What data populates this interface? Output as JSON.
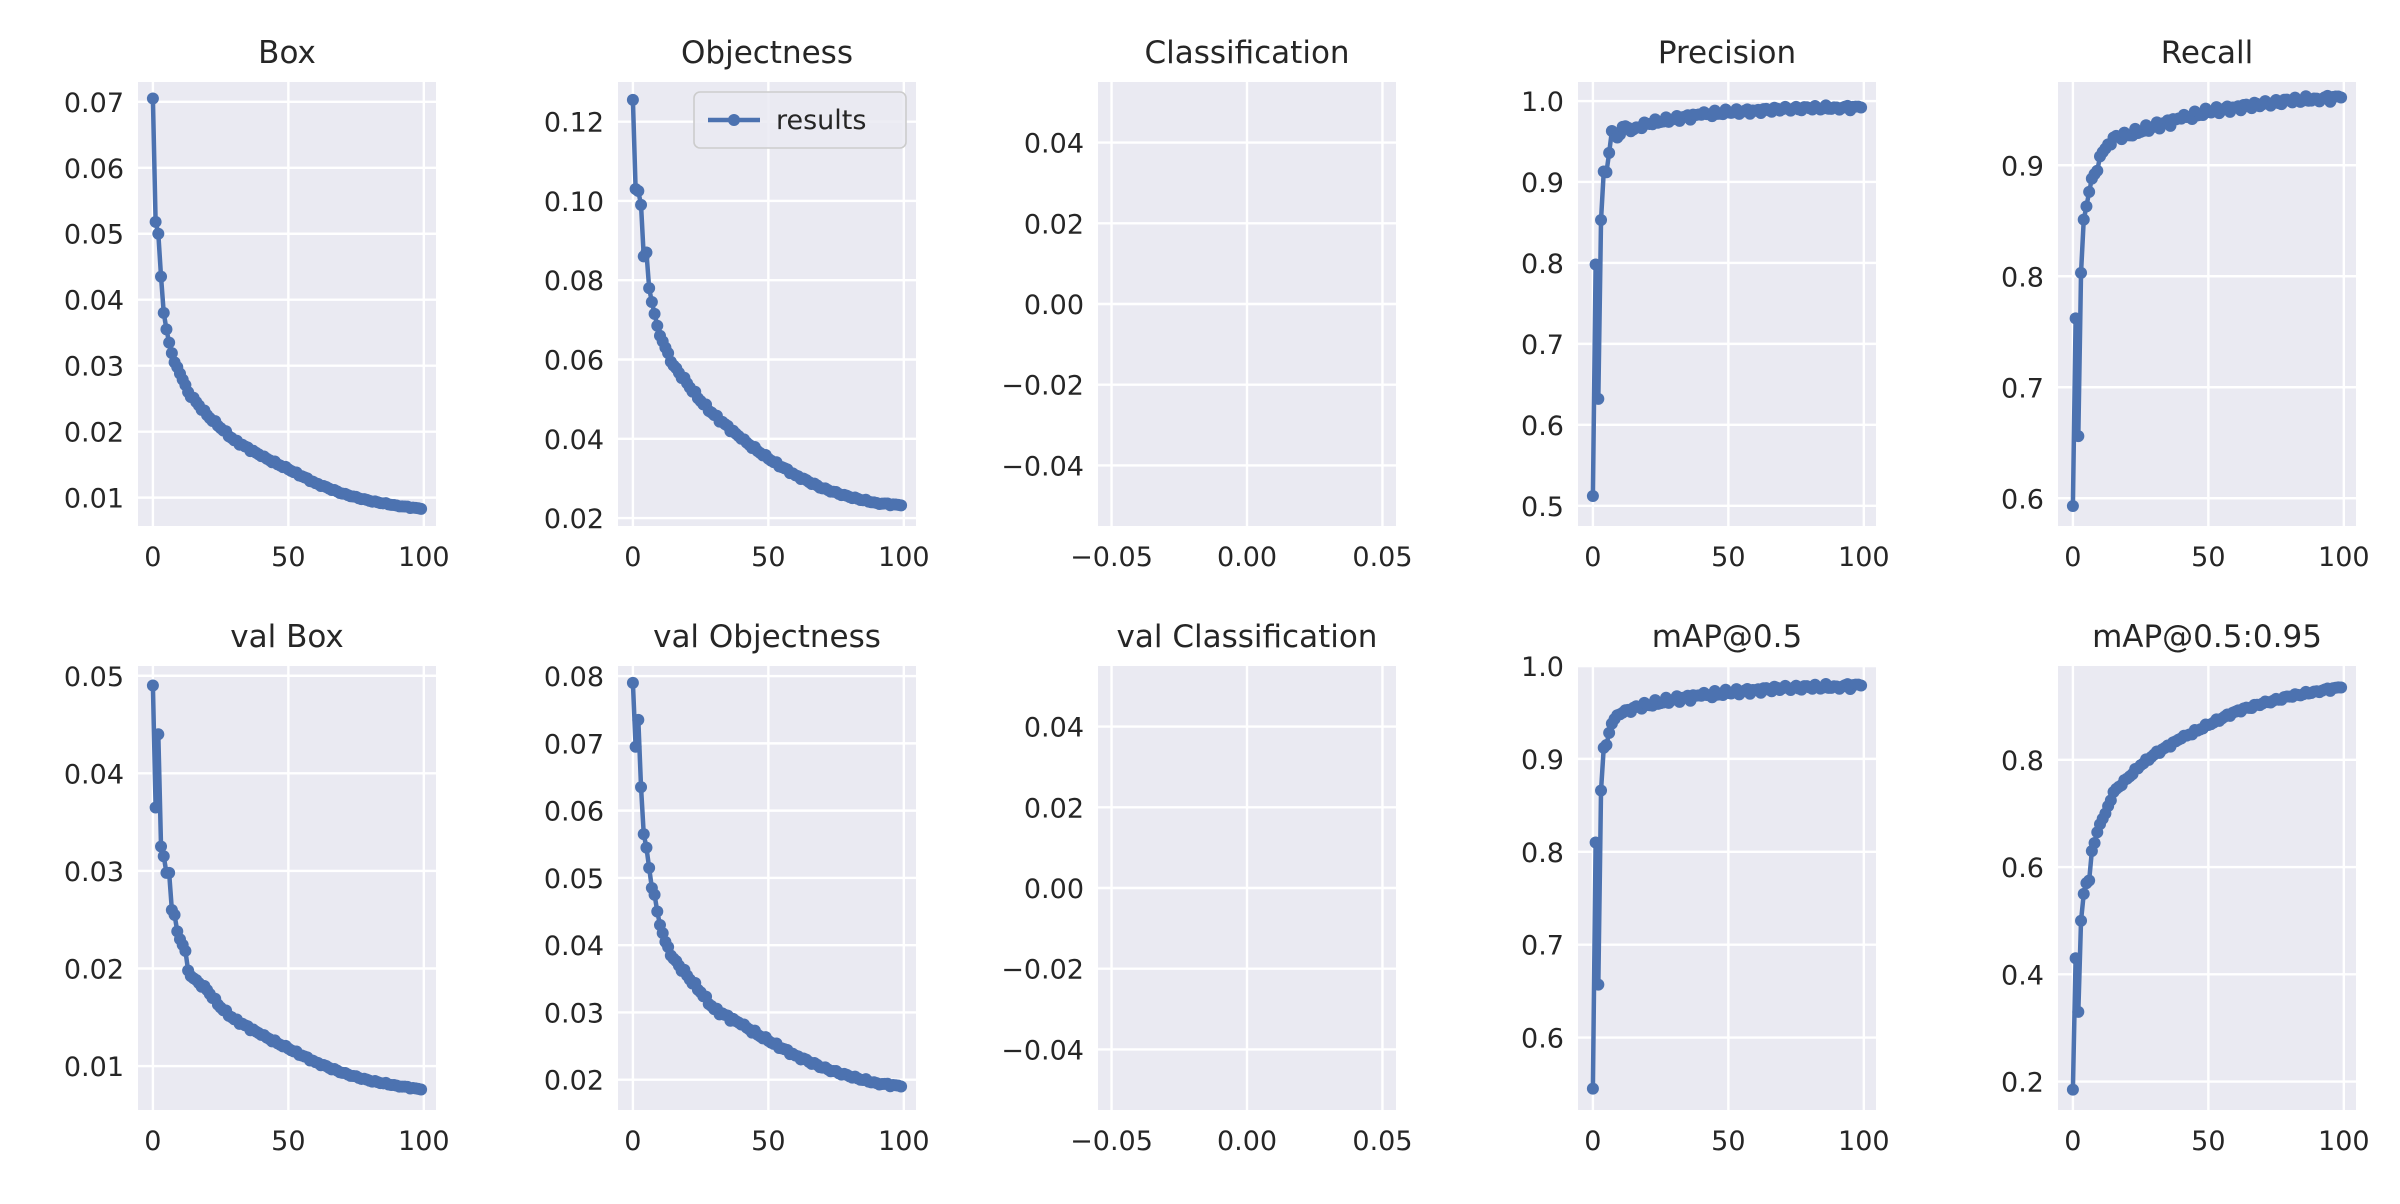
{
  "colors": {
    "plot_bg": "#EAEAF2",
    "grid": "#FFFFFF",
    "series": "#4C72B0",
    "text": "#262626"
  },
  "legend": {
    "label": "results",
    "subplot_index": 1,
    "placement": "upper right"
  },
  "chart_data": [
    {
      "type": "line",
      "title": "Box",
      "xlabel": "",
      "ylabel": "",
      "xlim": [
        -5.5,
        104.5
      ],
      "ylim": [
        0.0057,
        0.073
      ],
      "xticks": [
        0,
        50,
        100
      ],
      "xtick_labels": [
        "0",
        "50",
        "100"
      ],
      "yticks": [
        0.01,
        0.02,
        0.03,
        0.04,
        0.05,
        0.06,
        0.07
      ],
      "ytick_labels": [
        "0.01",
        "0.02",
        "0.03",
        "0.04",
        "0.05",
        "0.06",
        "0.07"
      ],
      "series": [
        {
          "curve": "decay",
          "x_start": 0,
          "x_end": 99,
          "anchors": [
            [
              0,
              0.0705
            ],
            [
              1,
              0.0518
            ],
            [
              2,
              0.05
            ],
            [
              3,
              0.0435
            ],
            [
              4,
              0.038
            ],
            [
              5,
              0.0355
            ],
            [
              6,
              0.0335
            ],
            [
              8,
              0.0305
            ],
            [
              10,
              0.0288
            ],
            [
              13,
              0.026
            ],
            [
              16,
              0.0245
            ],
            [
              20,
              0.0225
            ],
            [
              30,
              0.0187
            ],
            [
              40,
              0.0163
            ],
            [
              50,
              0.0143
            ],
            [
              60,
              0.0122
            ],
            [
              70,
              0.0106
            ],
            [
              80,
              0.0095
            ],
            [
              90,
              0.0088
            ],
            [
              99,
              0.0083
            ]
          ]
        }
      ]
    },
    {
      "type": "line",
      "title": "Objectness",
      "xlabel": "",
      "ylabel": "",
      "xlim": [
        -5.5,
        104.5
      ],
      "ylim": [
        0.018,
        0.13
      ],
      "xticks": [
        0,
        50,
        100
      ],
      "xtick_labels": [
        "0",
        "50",
        "100"
      ],
      "yticks": [
        0.02,
        0.04,
        0.06,
        0.08,
        0.1,
        0.12
      ],
      "ytick_labels": [
        "0.02",
        "0.04",
        "0.06",
        "0.08",
        "0.10",
        "0.12"
      ],
      "series": [
        {
          "curve": "decay",
          "x_start": 0,
          "x_end": 99,
          "anchors": [
            [
              0,
              0.1255
            ],
            [
              1,
              0.103
            ],
            [
              2,
              0.1025
            ],
            [
              3,
              0.099
            ],
            [
              4,
              0.086
            ],
            [
              5,
              0.087
            ],
            [
              6,
              0.078
            ],
            [
              7,
              0.0745
            ],
            [
              8,
              0.0715
            ],
            [
              9,
              0.0685
            ],
            [
              10,
              0.066
            ],
            [
              12,
              0.063
            ],
            [
              15,
              0.0585
            ],
            [
              20,
              0.054
            ],
            [
              25,
              0.0495
            ],
            [
              30,
              0.046
            ],
            [
              40,
              0.04
            ],
            [
              50,
              0.035
            ],
            [
              60,
              0.0308
            ],
            [
              70,
              0.0275
            ],
            [
              80,
              0.0253
            ],
            [
              90,
              0.0238
            ],
            [
              99,
              0.0232
            ]
          ]
        }
      ]
    },
    {
      "type": "line",
      "title": "Classification",
      "xlabel": "",
      "ylabel": "",
      "xlim": [
        -0.055,
        0.055
      ],
      "ylim": [
        -0.055,
        0.055
      ],
      "xticks": [
        -0.05,
        0.0,
        0.05
      ],
      "xtick_labels": [
        "−0.05",
        "0.00",
        "0.05"
      ],
      "yticks": [
        -0.04,
        -0.02,
        0.0,
        0.02,
        0.04
      ],
      "ytick_labels": [
        "−0.04",
        "−0.02",
        "0.00",
        "0.02",
        "0.04"
      ],
      "series": []
    },
    {
      "type": "line",
      "title": "Precision",
      "xlabel": "",
      "ylabel": "",
      "xlim": [
        -5.5,
        104.5
      ],
      "ylim": [
        0.475,
        1.0235
      ],
      "xticks": [
        0,
        50,
        100
      ],
      "xtick_labels": [
        "0",
        "50",
        "100"
      ],
      "yticks": [
        0.5,
        0.6,
        0.7,
        0.8,
        0.9,
        1.0
      ],
      "ytick_labels": [
        "0.5",
        "0.6",
        "0.7",
        "0.8",
        "0.9",
        "1.0"
      ],
      "series": [
        {
          "curve": "rise",
          "x_start": 0,
          "x_end": 99,
          "anchors": [
            [
              0,
              0.512
            ],
            [
              1,
              0.798
            ],
            [
              2,
              0.632
            ],
            [
              3,
              0.853
            ],
            [
              4,
              0.913
            ],
            [
              5,
              0.912
            ],
            [
              6,
              0.936
            ],
            [
              7,
              0.963
            ],
            [
              9,
              0.955
            ],
            [
              11,
              0.968
            ],
            [
              15,
              0.965
            ],
            [
              20,
              0.972
            ],
            [
              30,
              0.978
            ],
            [
              40,
              0.983
            ],
            [
              50,
              0.986
            ],
            [
              60,
              0.988
            ],
            [
              70,
              0.99
            ],
            [
              80,
              0.991
            ],
            [
              90,
              0.992
            ],
            [
              99,
              0.992
            ]
          ]
        }
      ]
    },
    {
      "type": "line",
      "title": "Recall",
      "xlabel": "",
      "ylabel": "",
      "xlim": [
        -5.5,
        104.5
      ],
      "ylim": [
        0.575,
        0.975
      ],
      "xticks": [
        0,
        50,
        100
      ],
      "xtick_labels": [
        "0",
        "50",
        "100"
      ],
      "yticks": [
        0.6,
        0.7,
        0.8,
        0.9
      ],
      "ytick_labels": [
        "0.6",
        "0.7",
        "0.8",
        "0.9"
      ],
      "series": [
        {
          "curve": "rise",
          "x_start": 0,
          "x_end": 99,
          "anchors": [
            [
              0,
              0.593
            ],
            [
              1,
              0.762
            ],
            [
              2,
              0.656
            ],
            [
              3,
              0.803
            ],
            [
              4,
              0.851
            ],
            [
              5,
              0.863
            ],
            [
              6,
              0.876
            ],
            [
              7,
              0.888
            ],
            [
              8,
              0.892
            ],
            [
              9,
              0.895
            ],
            [
              10,
              0.908
            ],
            [
              12,
              0.915
            ],
            [
              15,
              0.925
            ],
            [
              20,
              0.927
            ],
            [
              30,
              0.935
            ],
            [
              40,
              0.942
            ],
            [
              50,
              0.948
            ],
            [
              60,
              0.952
            ],
            [
              70,
              0.955
            ],
            [
              80,
              0.958
            ],
            [
              90,
              0.96
            ],
            [
              99,
              0.961
            ]
          ]
        }
      ]
    },
    {
      "type": "line",
      "title": "val Box",
      "xlabel": "",
      "ylabel": "",
      "xlim": [
        -5.5,
        104.5
      ],
      "ylim": [
        0.0055,
        0.051
      ],
      "xticks": [
        0,
        50,
        100
      ],
      "xtick_labels": [
        "0",
        "50",
        "100"
      ],
      "yticks": [
        0.01,
        0.02,
        0.03,
        0.04,
        0.05
      ],
      "ytick_labels": [
        "0.01",
        "0.02",
        "0.03",
        "0.04",
        "0.05"
      ],
      "series": [
        {
          "curve": "decay",
          "x_start": 0,
          "x_end": 99,
          "anchors": [
            [
              0,
              0.049
            ],
            [
              1,
              0.0365
            ],
            [
              2,
              0.044
            ],
            [
              3,
              0.0325
            ],
            [
              4,
              0.0315
            ],
            [
              5,
              0.0298
            ],
            [
              6,
              0.0298
            ],
            [
              7,
              0.026
            ],
            [
              8,
              0.0255
            ],
            [
              9,
              0.0238
            ],
            [
              10,
              0.023
            ],
            [
              12,
              0.0218
            ],
            [
              13,
              0.0198
            ],
            [
              15,
              0.019
            ],
            [
              20,
              0.0178
            ],
            [
              25,
              0.016
            ],
            [
              30,
              0.0148
            ],
            [
              40,
              0.0132
            ],
            [
              50,
              0.0118
            ],
            [
              60,
              0.0104
            ],
            [
              70,
              0.0093
            ],
            [
              80,
              0.0085
            ],
            [
              90,
              0.008
            ],
            [
              99,
              0.0076
            ]
          ]
        }
      ]
    },
    {
      "type": "line",
      "title": "val Objectness",
      "xlabel": "",
      "ylabel": "",
      "xlim": [
        -5.5,
        104.5
      ],
      "ylim": [
        0.0155,
        0.0815
      ],
      "xticks": [
        0,
        50,
        100
      ],
      "xtick_labels": [
        "0",
        "50",
        "100"
      ],
      "yticks": [
        0.02,
        0.03,
        0.04,
        0.05,
        0.06,
        0.07,
        0.08
      ],
      "ytick_labels": [
        "0.02",
        "0.03",
        "0.04",
        "0.05",
        "0.06",
        "0.07",
        "0.08"
      ],
      "series": [
        {
          "curve": "decay",
          "x_start": 0,
          "x_end": 99,
          "anchors": [
            [
              0,
              0.079
            ],
            [
              1,
              0.0695
            ],
            [
              2,
              0.0735
            ],
            [
              3,
              0.0635
            ],
            [
              4,
              0.0565
            ],
            [
              5,
              0.0545
            ],
            [
              6,
              0.0515
            ],
            [
              7,
              0.0485
            ],
            [
              8,
              0.0475
            ],
            [
              9,
              0.045
            ],
            [
              10,
              0.043
            ],
            [
              12,
              0.0405
            ],
            [
              15,
              0.038
            ],
            [
              20,
              0.0355
            ],
            [
              25,
              0.033
            ],
            [
              30,
              0.0305
            ],
            [
              40,
              0.0282
            ],
            [
              50,
              0.0258
            ],
            [
              60,
              0.0236
            ],
            [
              70,
              0.0218
            ],
            [
              80,
              0.0205
            ],
            [
              90,
              0.0195
            ],
            [
              99,
              0.019
            ]
          ]
        }
      ]
    },
    {
      "type": "line",
      "title": "val Classification",
      "xlabel": "",
      "ylabel": "",
      "xlim": [
        -0.055,
        0.055
      ],
      "ylim": [
        -0.055,
        0.055
      ],
      "xticks": [
        -0.05,
        0.0,
        0.05
      ],
      "xtick_labels": [
        "−0.05",
        "0.00",
        "0.05"
      ],
      "yticks": [
        -0.04,
        -0.02,
        0.0,
        0.02,
        0.04
      ],
      "ytick_labels": [
        "−0.04",
        "−0.02",
        "0.00",
        "0.02",
        "0.04"
      ],
      "series": []
    },
    {
      "type": "line",
      "title": "mAP@0.5",
      "xlabel": "",
      "ylabel": "",
      "xlim": [
        -5.5,
        104.5
      ],
      "ylim": [
        0.522,
        1.0
      ],
      "xticks": [
        0,
        50,
        100
      ],
      "xtick_labels": [
        "0",
        "50",
        "100"
      ],
      "yticks": [
        0.6,
        0.7,
        0.8,
        0.9,
        1.0
      ],
      "ytick_labels": [
        "0.6",
        "0.7",
        "0.8",
        "0.9",
        "1.0"
      ],
      "series": [
        {
          "curve": "rise",
          "x_start": 0,
          "x_end": 99,
          "anchors": [
            [
              0,
              0.545
            ],
            [
              1,
              0.81
            ],
            [
              2,
              0.657
            ],
            [
              3,
              0.866
            ],
            [
              4,
              0.912
            ],
            [
              5,
              0.915
            ],
            [
              6,
              0.928
            ],
            [
              7,
              0.938
            ],
            [
              8,
              0.943
            ],
            [
              10,
              0.948
            ],
            [
              15,
              0.955
            ],
            [
              20,
              0.958
            ],
            [
              30,
              0.964
            ],
            [
              40,
              0.968
            ],
            [
              50,
              0.971
            ],
            [
              60,
              0.974
            ],
            [
              70,
              0.976
            ],
            [
              80,
              0.977
            ],
            [
              90,
              0.978
            ],
            [
              99,
              0.979
            ]
          ]
        }
      ]
    },
    {
      "type": "line",
      "title": "mAP@0.5:0.95",
      "xlabel": "",
      "ylabel": "",
      "xlim": [
        -5.5,
        104.5
      ],
      "ylim": [
        0.147,
        0.975
      ],
      "xticks": [
        0,
        50,
        100
      ],
      "xtick_labels": [
        "0",
        "50",
        "100"
      ],
      "yticks": [
        0.2,
        0.4,
        0.6,
        0.8
      ],
      "ytick_labels": [
        "0.2",
        "0.4",
        "0.6",
        "0.8"
      ],
      "series": [
        {
          "curve": "rise",
          "x_start": 0,
          "x_end": 99,
          "anchors": [
            [
              0,
              0.185
            ],
            [
              1,
              0.43
            ],
            [
              2,
              0.33
            ],
            [
              3,
              0.5
            ],
            [
              4,
              0.55
            ],
            [
              5,
              0.57
            ],
            [
              6,
              0.575
            ],
            [
              7,
              0.63
            ],
            [
              8,
              0.645
            ],
            [
              9,
              0.665
            ],
            [
              10,
              0.68
            ],
            [
              12,
              0.7
            ],
            [
              15,
              0.74
            ],
            [
              20,
              0.765
            ],
            [
              25,
              0.79
            ],
            [
              30,
              0.81
            ],
            [
              40,
              0.84
            ],
            [
              50,
              0.865
            ],
            [
              60,
              0.89
            ],
            [
              70,
              0.905
            ],
            [
              80,
              0.918
            ],
            [
              90,
              0.928
            ],
            [
              99,
              0.935
            ]
          ]
        }
      ]
    }
  ]
}
